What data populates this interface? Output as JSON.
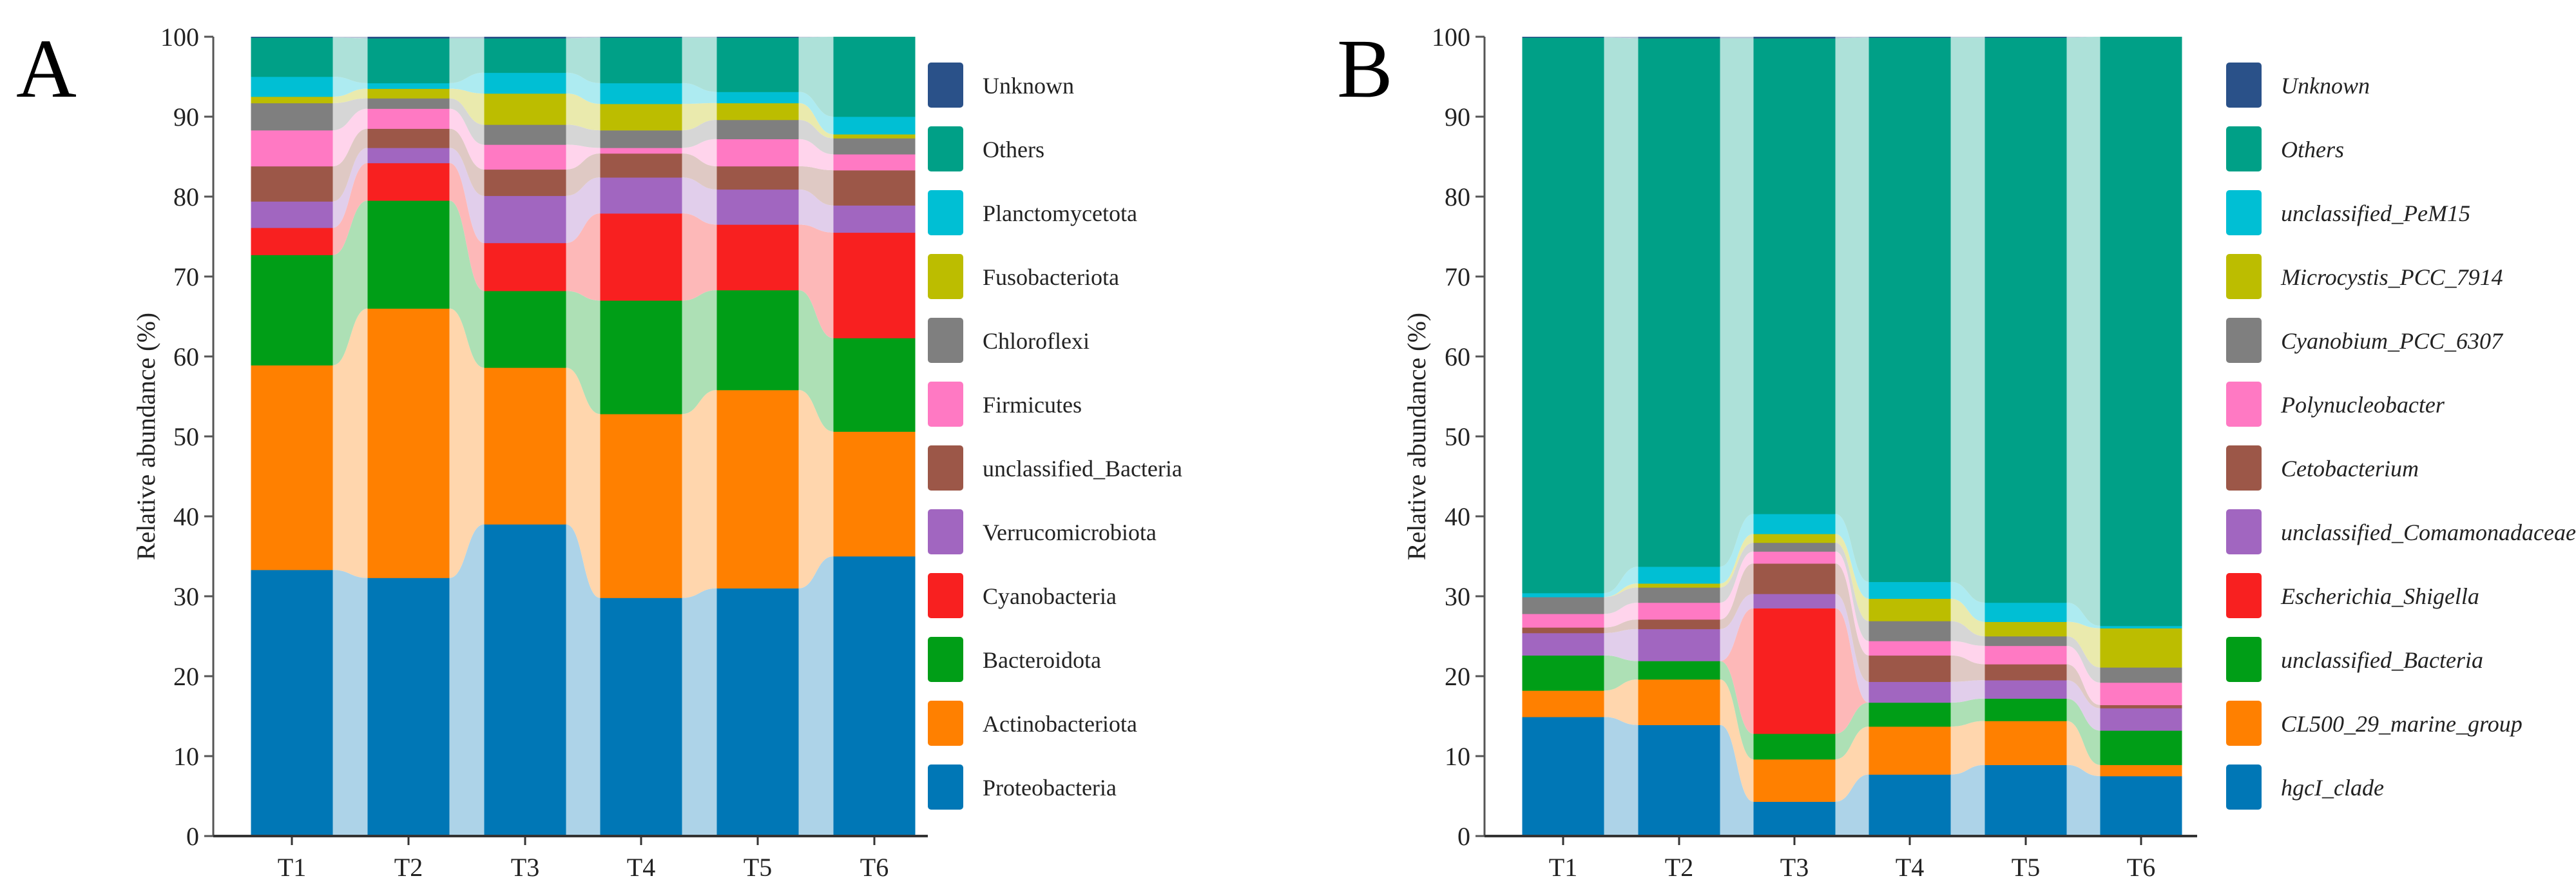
{
  "chart_data": [
    {
      "type": "bar",
      "stacked": true,
      "panel_label": "A",
      "title": "",
      "xlabel": "",
      "ylabel": "Relative abundance (%)",
      "ylim": [
        0,
        100
      ],
      "yticks": [
        0,
        10,
        20,
        30,
        40,
        50,
        60,
        70,
        80,
        90,
        100
      ],
      "categories": [
        "T1",
        "T2",
        "T3",
        "T4",
        "T5",
        "T6"
      ],
      "legend_italic": false,
      "legend_position": "right",
      "series": [
        {
          "name": "Proteobacteria",
          "color": "#0077b6",
          "values": [
            33.3,
            32.3,
            39.0,
            29.8,
            31.0,
            35.0
          ]
        },
        {
          "name": "Actinobacteriota",
          "color": "#ff8000",
          "values": [
            25.6,
            33.7,
            19.6,
            23.0,
            24.8,
            15.6
          ]
        },
        {
          "name": "Bacteroidota",
          "color": "#009e17",
          "values": [
            13.8,
            13.5,
            9.6,
            14.2,
            12.5,
            11.7
          ]
        },
        {
          "name": "Cyanobacteria",
          "color": "#f82020",
          "values": [
            3.4,
            4.7,
            6.0,
            10.9,
            8.2,
            13.2
          ]
        },
        {
          "name": "Verrucomicrobiota",
          "color": "#a166c0",
          "values": [
            3.3,
            1.9,
            5.9,
            4.5,
            4.4,
            3.4
          ]
        },
        {
          "name": "unclassified_Bacteria",
          "color": "#9c5748",
          "values": [
            4.4,
            2.4,
            3.3,
            3.0,
            2.9,
            4.4
          ]
        },
        {
          "name": "Firmicutes",
          "color": "#ff79c3",
          "values": [
            4.5,
            2.5,
            3.1,
            0.7,
            3.4,
            2.0
          ]
        },
        {
          "name": "Chloroflexi",
          "color": "#7f7f7f",
          "values": [
            3.4,
            1.3,
            2.5,
            2.2,
            2.4,
            2.0
          ]
        },
        {
          "name": "Fusobacteriota",
          "color": "#bcbd00",
          "values": [
            0.8,
            1.2,
            3.9,
            3.3,
            2.1,
            0.5
          ]
        },
        {
          "name": "Planctomycetota",
          "color": "#00bfd4",
          "values": [
            2.5,
            0.7,
            2.6,
            2.6,
            1.4,
            2.2
          ]
        },
        {
          "name": "Others",
          "color": "#00a087",
          "values": [
            4.9,
            5.6,
            4.3,
            5.7,
            6.8,
            10.0
          ]
        },
        {
          "name": "Unknown",
          "color": "#2a5189",
          "values": [
            0.1,
            0.2,
            0.2,
            0.1,
            0.1,
            0.0
          ]
        }
      ]
    },
    {
      "type": "bar",
      "stacked": true,
      "panel_label": "B",
      "title": "",
      "xlabel": "",
      "ylabel": "Relative abundance (%)",
      "ylim": [
        0,
        100
      ],
      "yticks": [
        0,
        10,
        20,
        30,
        40,
        50,
        60,
        70,
        80,
        90,
        100
      ],
      "categories": [
        "T1",
        "T2",
        "T3",
        "T4",
        "T5",
        "T6"
      ],
      "legend_italic": true,
      "legend_position": "right",
      "series": [
        {
          "name": "hgcI_clade",
          "color": "#0077b6",
          "values": [
            14.9,
            13.9,
            4.3,
            7.7,
            8.9,
            7.5
          ]
        },
        {
          "name": "CL500_29_marine_group",
          "color": "#ff8000",
          "values": [
            3.3,
            5.7,
            5.3,
            6.0,
            5.5,
            1.4
          ]
        },
        {
          "name": "unclassified_Bacteria",
          "color": "#009e17",
          "values": [
            4.4,
            2.3,
            3.2,
            3.0,
            2.8,
            4.3
          ]
        },
        {
          "name": "Escherichia_Shigella",
          "color": "#f82020",
          "values": [
            0.0,
            0.0,
            15.7,
            0.0,
            0.0,
            0.0
          ]
        },
        {
          "name": "unclassified_Comamonadaceae",
          "color": "#a166c0",
          "values": [
            2.8,
            4.0,
            1.8,
            2.6,
            2.3,
            2.8
          ]
        },
        {
          "name": "Cetobacterium",
          "color": "#9c5748",
          "values": [
            0.7,
            1.2,
            3.8,
            3.3,
            2.0,
            0.4
          ]
        },
        {
          "name": "Polynucleobacter",
          "color": "#ff79c3",
          "values": [
            1.7,
            2.1,
            1.5,
            1.8,
            2.3,
            2.8
          ]
        },
        {
          "name": "Cyanobium_PCC_6307",
          "color": "#7f7f7f",
          "values": [
            2.1,
            1.9,
            1.1,
            2.5,
            1.2,
            1.9
          ]
        },
        {
          "name": "Microcystis_PCC_7914",
          "color": "#bcbd00",
          "values": [
            0.0,
            0.5,
            1.1,
            2.8,
            1.8,
            4.9
          ]
        },
        {
          "name": "unclassified_PeM15",
          "color": "#00bfd4",
          "values": [
            0.5,
            2.1,
            2.5,
            2.1,
            2.4,
            0.3
          ]
        },
        {
          "name": "Others",
          "color": "#00a087",
          "values": [
            69.5,
            66.1,
            59.5,
            68.1,
            70.7,
            73.7
          ]
        },
        {
          "name": "Unknown",
          "color": "#2a5189",
          "values": [
            0.1,
            0.2,
            0.2,
            0.1,
            0.1,
            0.0
          ]
        }
      ]
    }
  ]
}
